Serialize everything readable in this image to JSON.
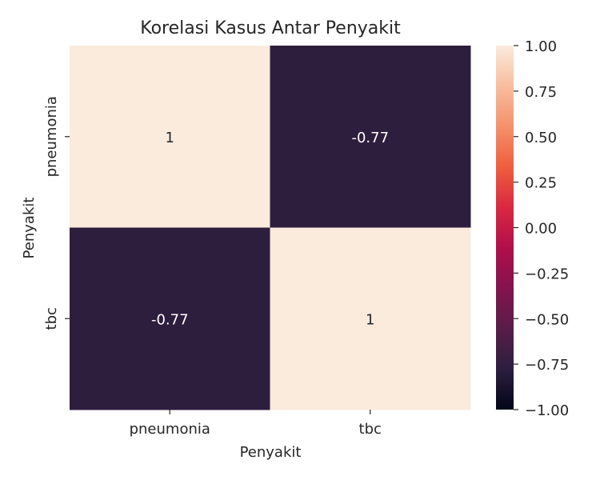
{
  "chart_data": {
    "type": "heatmap",
    "title": "Korelasi Kasus Antar Penyakit",
    "xlabel": "Penyakit",
    "ylabel": "Penyakit",
    "x_categories": [
      "pneumonia",
      "tbc"
    ],
    "y_categories": [
      "pneumonia",
      "tbc"
    ],
    "values": [
      [
        1,
        -0.77
      ],
      [
        -0.77,
        1
      ]
    ],
    "annotations": [
      [
        "1",
        "-0.77"
      ],
      [
        "-0.77",
        "1"
      ]
    ],
    "colorbar": {
      "range": [
        -1,
        1
      ],
      "ticks": [
        "1.00",
        "0.75",
        "0.50",
        "0.25",
        "0.00",
        "−0.25",
        "−0.50",
        "−0.75",
        "−1.00"
      ],
      "tick_values": [
        1,
        0.75,
        0.5,
        0.25,
        0,
        -0.25,
        -0.5,
        -0.75,
        -1
      ],
      "colormap": [
        "#03051a",
        "#2c1e3e",
        "#581d4a",
        "#84134e",
        "#b20e4b",
        "#d92842",
        "#f05e3c",
        "#f5916b",
        "#f8bd9e",
        "#faebdd"
      ]
    },
    "grid": false
  }
}
